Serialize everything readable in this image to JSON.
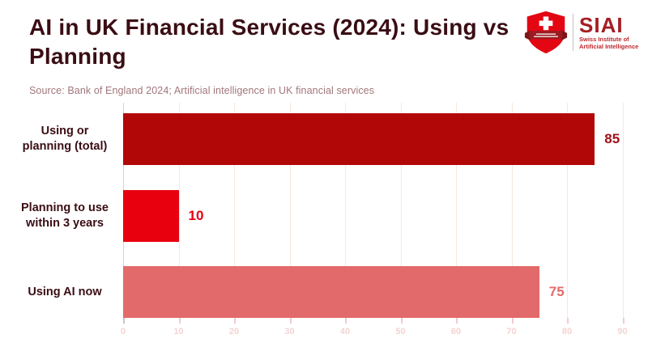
{
  "header": {
    "title_lines": [
      "AI in UK Financial Services (2024): Using vs",
      "Planning"
    ],
    "source": "Source: Bank of England 2024; Artificial intelligence in UK financial services"
  },
  "logo": {
    "acronym": "SIAI",
    "subtitle_lines": [
      "Swiss Institute of",
      "Artificial Intelligence"
    ],
    "icon": "swiss-shield-icon",
    "shield_color": "#e30613",
    "banner_color": "#9c1b20",
    "text_color": "#a41e23"
  },
  "chart_data": {
    "type": "bar",
    "orientation": "horizontal",
    "title": "AI in UK Financial Services (2024): Using vs Planning",
    "source": "Bank of England 2024; Artificial intelligence in UK financial services",
    "categories": [
      "Using or planning (total)",
      "Planning to use within 3 years",
      "Using AI now"
    ],
    "values": [
      85,
      10,
      75
    ],
    "bar_colors": [
      "#b20707",
      "#e8000f",
      "#e36a6a"
    ],
    "value_label_colors": [
      "#a01016",
      "#e8000f",
      "#e36a6a"
    ],
    "xlim": [
      0,
      90
    ],
    "xticks": [
      0,
      10,
      20,
      30,
      40,
      50,
      60,
      70,
      80,
      90
    ],
    "grid": true,
    "legend": false
  },
  "colors": {
    "title_text": "#3a0d14",
    "source_text": "#a1767b",
    "gridline": "#f8e7e0",
    "zero_line": "#d4d0d0",
    "tick_label": "#f5d3d3",
    "background": "#ffffff"
  }
}
